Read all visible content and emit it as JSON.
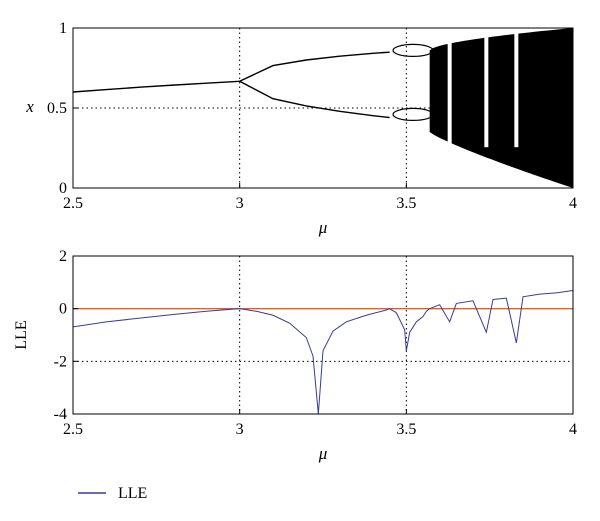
{
  "chart_data": [
    {
      "type": "line",
      "subtype": "bifurcation",
      "xlabel": "μ",
      "ylabel": "x",
      "xlim": [
        2.5,
        4
      ],
      "ylim": [
        0,
        1
      ],
      "xticks": [
        "2.5",
        "3",
        "3.5",
        "4"
      ],
      "yticks": [
        "0",
        "0.5",
        "1"
      ],
      "grid": "dotted lines at x=3, x=3.5 and y=0.5",
      "color": "#000000",
      "series": [
        {
          "x": [
            2.5,
            2.6,
            2.7,
            2.8,
            2.9,
            3.0
          ],
          "values": [
            0.6,
            0.615,
            0.63,
            0.643,
            0.655,
            0.667
          ]
        },
        {
          "x": [
            3.0,
            3.1,
            3.2,
            3.3,
            3.4,
            3.45
          ],
          "values": [
            0.667,
            0.765,
            0.8,
            0.824,
            0.842,
            0.849
          ]
        },
        {
          "x": [
            3.0,
            3.1,
            3.2,
            3.3,
            3.4,
            3.45
          ],
          "values": [
            0.667,
            0.558,
            0.513,
            0.479,
            0.452,
            0.44
          ]
        }
      ],
      "chaotic_band": {
        "x_start": 3.57,
        "x_end": 4.0,
        "upper_at_end": 1.0,
        "lower_at_end": 0.0,
        "periodic_windows": [
          3.63,
          3.74,
          3.83
        ]
      }
    },
    {
      "type": "line",
      "xlabel": "μ",
      "ylabel": "LLE",
      "xlim": [
        2.5,
        4
      ],
      "ylim": [
        -4,
        2
      ],
      "xticks": [
        "2.5",
        "3",
        "3.5",
        "4"
      ],
      "yticks": [
        "-4",
        "-2",
        "0",
        "2"
      ],
      "grid": "dotted lines at x=3, x=3.5 and y=-2",
      "zero_line_color": "#e06020",
      "legend": "bottom-left",
      "series": [
        {
          "name": "LLE",
          "color": "#3a3a9a",
          "x": [
            2.5,
            2.6,
            2.7,
            2.8,
            2.9,
            3.0,
            3.05,
            3.1,
            3.15,
            3.2,
            3.22,
            3.236,
            3.25,
            3.28,
            3.32,
            3.38,
            3.44,
            3.449,
            3.47,
            3.495,
            3.5,
            3.51,
            3.53,
            3.55,
            3.56,
            3.57,
            3.6,
            3.63,
            3.65,
            3.7,
            3.74,
            3.76,
            3.8,
            3.83,
            3.85,
            3.9,
            3.95,
            4.0
          ],
          "values": [
            -0.69,
            -0.5,
            -0.36,
            -0.22,
            -0.1,
            0.0,
            -0.1,
            -0.25,
            -0.55,
            -1.1,
            -1.8,
            -4.0,
            -1.6,
            -0.85,
            -0.5,
            -0.25,
            -0.05,
            0.0,
            -0.15,
            -0.8,
            -1.6,
            -0.9,
            -0.5,
            -0.3,
            -0.1,
            0.0,
            0.15,
            -0.5,
            0.2,
            0.3,
            -0.9,
            0.35,
            0.4,
            -1.3,
            0.45,
            0.55,
            0.6,
            0.69
          ]
        }
      ]
    }
  ]
}
